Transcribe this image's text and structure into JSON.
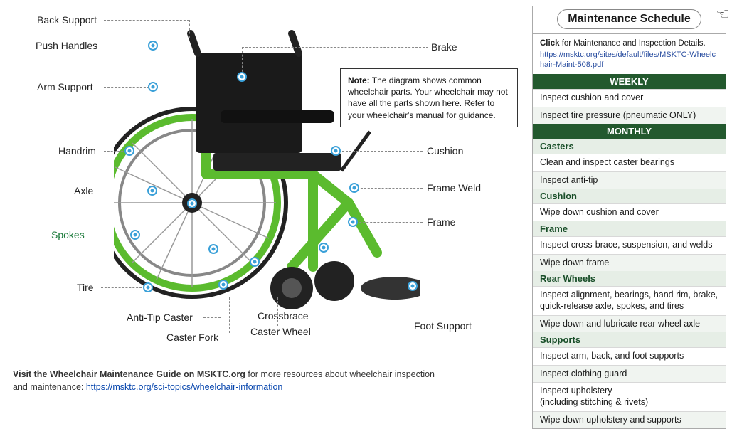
{
  "colors": {
    "accent_green": "#5bbb2e",
    "dark_green_band": "#23592e",
    "cat_bg": "#e6eee6",
    "marker_ring": "#3aa0d8",
    "text": "#1a1a1a",
    "link": "#0645ad"
  },
  "note": {
    "label": "Note:",
    "text": "The diagram shows common wheelchair parts. Your wheelchair may not have all the parts shown here. Refer to your wheelchair's manual for guidance."
  },
  "footer": {
    "lead": "Visit the Wheelchair Maintenance Guide on MSKTC.org",
    "rest": " for more resources about wheelchair inspection and maintenance: ",
    "url": "https://msktc.org/sci-topics/wheelchair-information"
  },
  "parts": {
    "back_support": "Back Support",
    "push_handles": "Push Handles",
    "arm_support": "Arm Support",
    "handrim": "Handrim",
    "axle": "Axle",
    "spokes": "Spokes",
    "tire": "Tire",
    "anti_tip": "Anti-Tip Caster",
    "caster_fork": "Caster Fork",
    "caster_wheel": "Caster Wheel",
    "crossbrace": "Crossbrace",
    "foot_support": "Foot Support",
    "frame": "Frame",
    "frame_weld": "Frame Weld",
    "cushion": "Cushion",
    "brake": "Brake"
  },
  "schedule": {
    "title": "Maintenance Schedule",
    "click_label": "Click",
    "click_text": " for Maintenance and Inspection Details.",
    "pdf_url": "https://msktc.org/sites/default/files/MSKTC-Wheelchair-Maint-508.pdf",
    "weekly_label": "WEEKLY",
    "weekly_items": [
      "Inspect cushion and cover",
      "Inspect tire pressure (pneumatic ONLY)"
    ],
    "monthly_label": "MONTHLY",
    "monthly": [
      {
        "cat": "Casters",
        "items": [
          "Clean and inspect caster bearings",
          "Inspect anti-tip"
        ]
      },
      {
        "cat": "Cushion",
        "items": [
          "Wipe down cushion and cover"
        ]
      },
      {
        "cat": "Frame",
        "items": [
          "Inspect cross-brace, suspension, and welds",
          "Wipe down frame"
        ]
      },
      {
        "cat": "Rear Wheels",
        "items": [
          "Inspect alignment, bearings, hand rim, brake, quick-release axle, spokes, and tires",
          "Wipe down and lubricate rear wheel axle"
        ]
      },
      {
        "cat": "Supports",
        "items": [
          "Inspect arm, back, and foot supports",
          "Inspect clothing guard",
          "Inspect upholstery\n(including stitching & rivets)",
          "Wipe down upholstery and supports"
        ]
      }
    ]
  }
}
